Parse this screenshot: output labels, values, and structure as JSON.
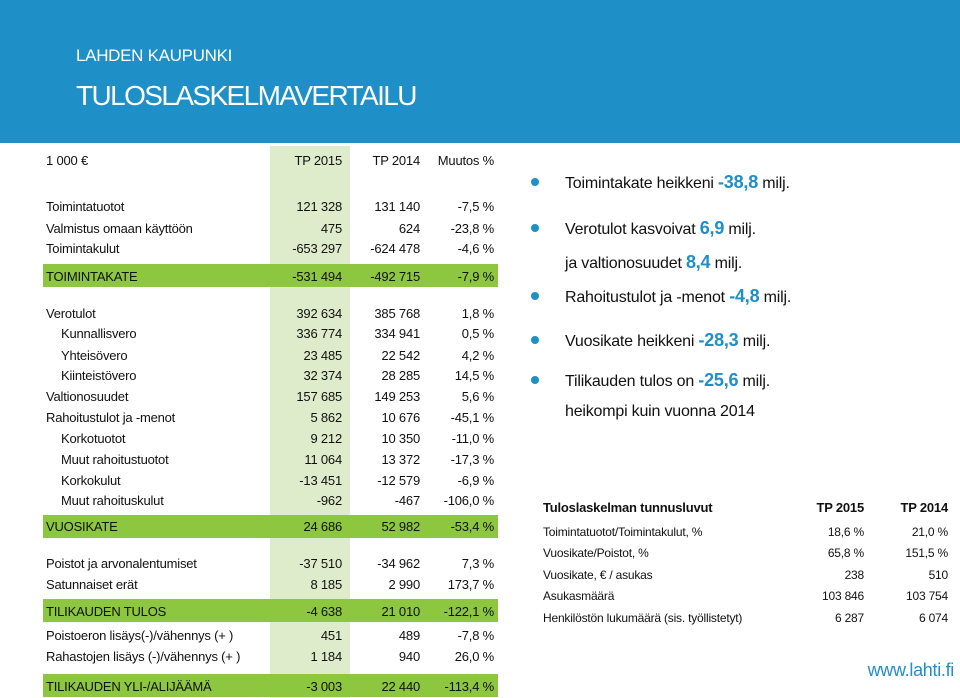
{
  "header": {
    "org": "LAHDEN KAUPUNKI",
    "title": "TULOSLASKELMAVERTAILU"
  },
  "table": {
    "unit": "1 000 €",
    "columns": [
      "TP 2015",
      "TP 2014",
      "Muutos %"
    ],
    "rows": [
      {
        "label": "Toimintatuotot",
        "tp2015": "121 328",
        "tp2014": "131 140",
        "change": "-7,5 %"
      },
      {
        "label": "Valmistus omaan käyttöön",
        "tp2015": "475",
        "tp2014": "624",
        "change": "-23,8 %"
      },
      {
        "label": "Toimintakulut",
        "tp2015": "-653 297",
        "tp2014": "-624 478",
        "change": "-4,6 %"
      },
      {
        "label": "TOIMINTAKATE",
        "tp2015": "-531 494",
        "tp2014": "-492 715",
        "change": "-7,9 %"
      },
      {
        "label": "Verotulot",
        "tp2015": "392 634",
        "tp2014": "385 768",
        "change": "1,8 %"
      },
      {
        "label": "Kunnallisvero",
        "tp2015": "336 774",
        "tp2014": "334 941",
        "change": "0,5 %"
      },
      {
        "label": "Yhteisövero",
        "tp2015": "23 485",
        "tp2014": "22 542",
        "change": "4,2 %"
      },
      {
        "label": "Kiinteistövero",
        "tp2015": "32 374",
        "tp2014": "28 285",
        "change": "14,5 %"
      },
      {
        "label": "Valtionosuudet",
        "tp2015": "157 685",
        "tp2014": "149 253",
        "change": "5,6 %"
      },
      {
        "label": "Rahoitustulot ja -menot",
        "tp2015": "5 862",
        "tp2014": "10 676",
        "change": "-45,1 %"
      },
      {
        "label": "Korkotuotot",
        "tp2015": "9 212",
        "tp2014": "10 350",
        "change": "-11,0 %"
      },
      {
        "label": "Muut rahoitustuotot",
        "tp2015": "11 064",
        "tp2014": "13 372",
        "change": "-17,3 %"
      },
      {
        "label": "Korkokulut",
        "tp2015": "-13 451",
        "tp2014": "-12 579",
        "change": "-6,9 %"
      },
      {
        "label": "Muut rahoituskulut",
        "tp2015": "-962",
        "tp2014": "-467",
        "change": "-106,0 %"
      },
      {
        "label": "VUOSIKATE",
        "tp2015": "24 686",
        "tp2014": "52 982",
        "change": "-53,4 %"
      },
      {
        "label": "Poistot ja arvonalentumiset",
        "tp2015": "-37 510",
        "tp2014": "-34 962",
        "change": "7,3 %"
      },
      {
        "label": "Satunnaiset erät",
        "tp2015": "8 185",
        "tp2014": "2 990",
        "change": "173,7 %"
      },
      {
        "label": "TILIKAUDEN TULOS",
        "tp2015": "-4 638",
        "tp2014": "21 010",
        "change": "-122,1 %"
      },
      {
        "label": "Poistoeron lisäys(-)/vähennys (+ )",
        "tp2015": "451",
        "tp2014": "489",
        "change": "-7,8 %"
      },
      {
        "label": "Rahastojen lisäys (-)/vähennys (+ )",
        "tp2015": "1 184",
        "tp2014": "940",
        "change": "26,0 %"
      },
      {
        "label": "TILIKAUDEN YLI-/ALIJÄÄMÄ",
        "tp2015": "-3 003",
        "tp2014": "22 440",
        "change": "-113,4 %"
      }
    ]
  },
  "bullets": [
    {
      "pre": "Toimintakate heikkeni ",
      "hl": "-38,8",
      "post": " milj."
    },
    {
      "pre": "Verotulot kasvoivat ",
      "hl": "6,9",
      "post": " milj."
    },
    {
      "pre": "ja valtionosuudet ",
      "hl": "8,4",
      "post": " milj."
    },
    {
      "pre": "Rahoitustulot ja -menot ",
      "hl": "-4,8",
      "post": " milj."
    },
    {
      "pre": "Vuosikate heikkeni ",
      "hl": "-28,3",
      "post": " milj."
    },
    {
      "pre": "Tilikauden tulos on ",
      "hl": "-25,6",
      "post": " milj."
    },
    {
      "pre": "heikompi kuin vuonna 2014",
      "hl": "",
      "post": ""
    }
  ],
  "keyfigures": {
    "title": "Tuloslaskelman tunnusluvut",
    "col1": "TP 2015",
    "col2": "TP 2014",
    "rows": [
      {
        "label": "Toimintatuotot/Toimintakulut, %",
        "tp2015": "18,6 %",
        "tp2014": "21,0 %"
      },
      {
        "label": "Vuosikate/Poistot, %",
        "tp2015": "65,8 %",
        "tp2014": "151,5 %"
      },
      {
        "label": "Vuosikate, € / asukas",
        "tp2015": "238",
        "tp2014": "510"
      },
      {
        "label": "Asukasmäärä",
        "tp2015": "103 846",
        "tp2014": "103 754"
      },
      {
        "label": "Henkilöstön lukumäärä (sis. työllistetyt)",
        "tp2015": "6 287",
        "tp2014": "6 074"
      }
    ]
  },
  "footer": {
    "site": "www.lahti.fi"
  },
  "colors": {
    "blue": "#1f8fc7",
    "green": "#8dc63f",
    "light_green": "#dfeccb"
  }
}
